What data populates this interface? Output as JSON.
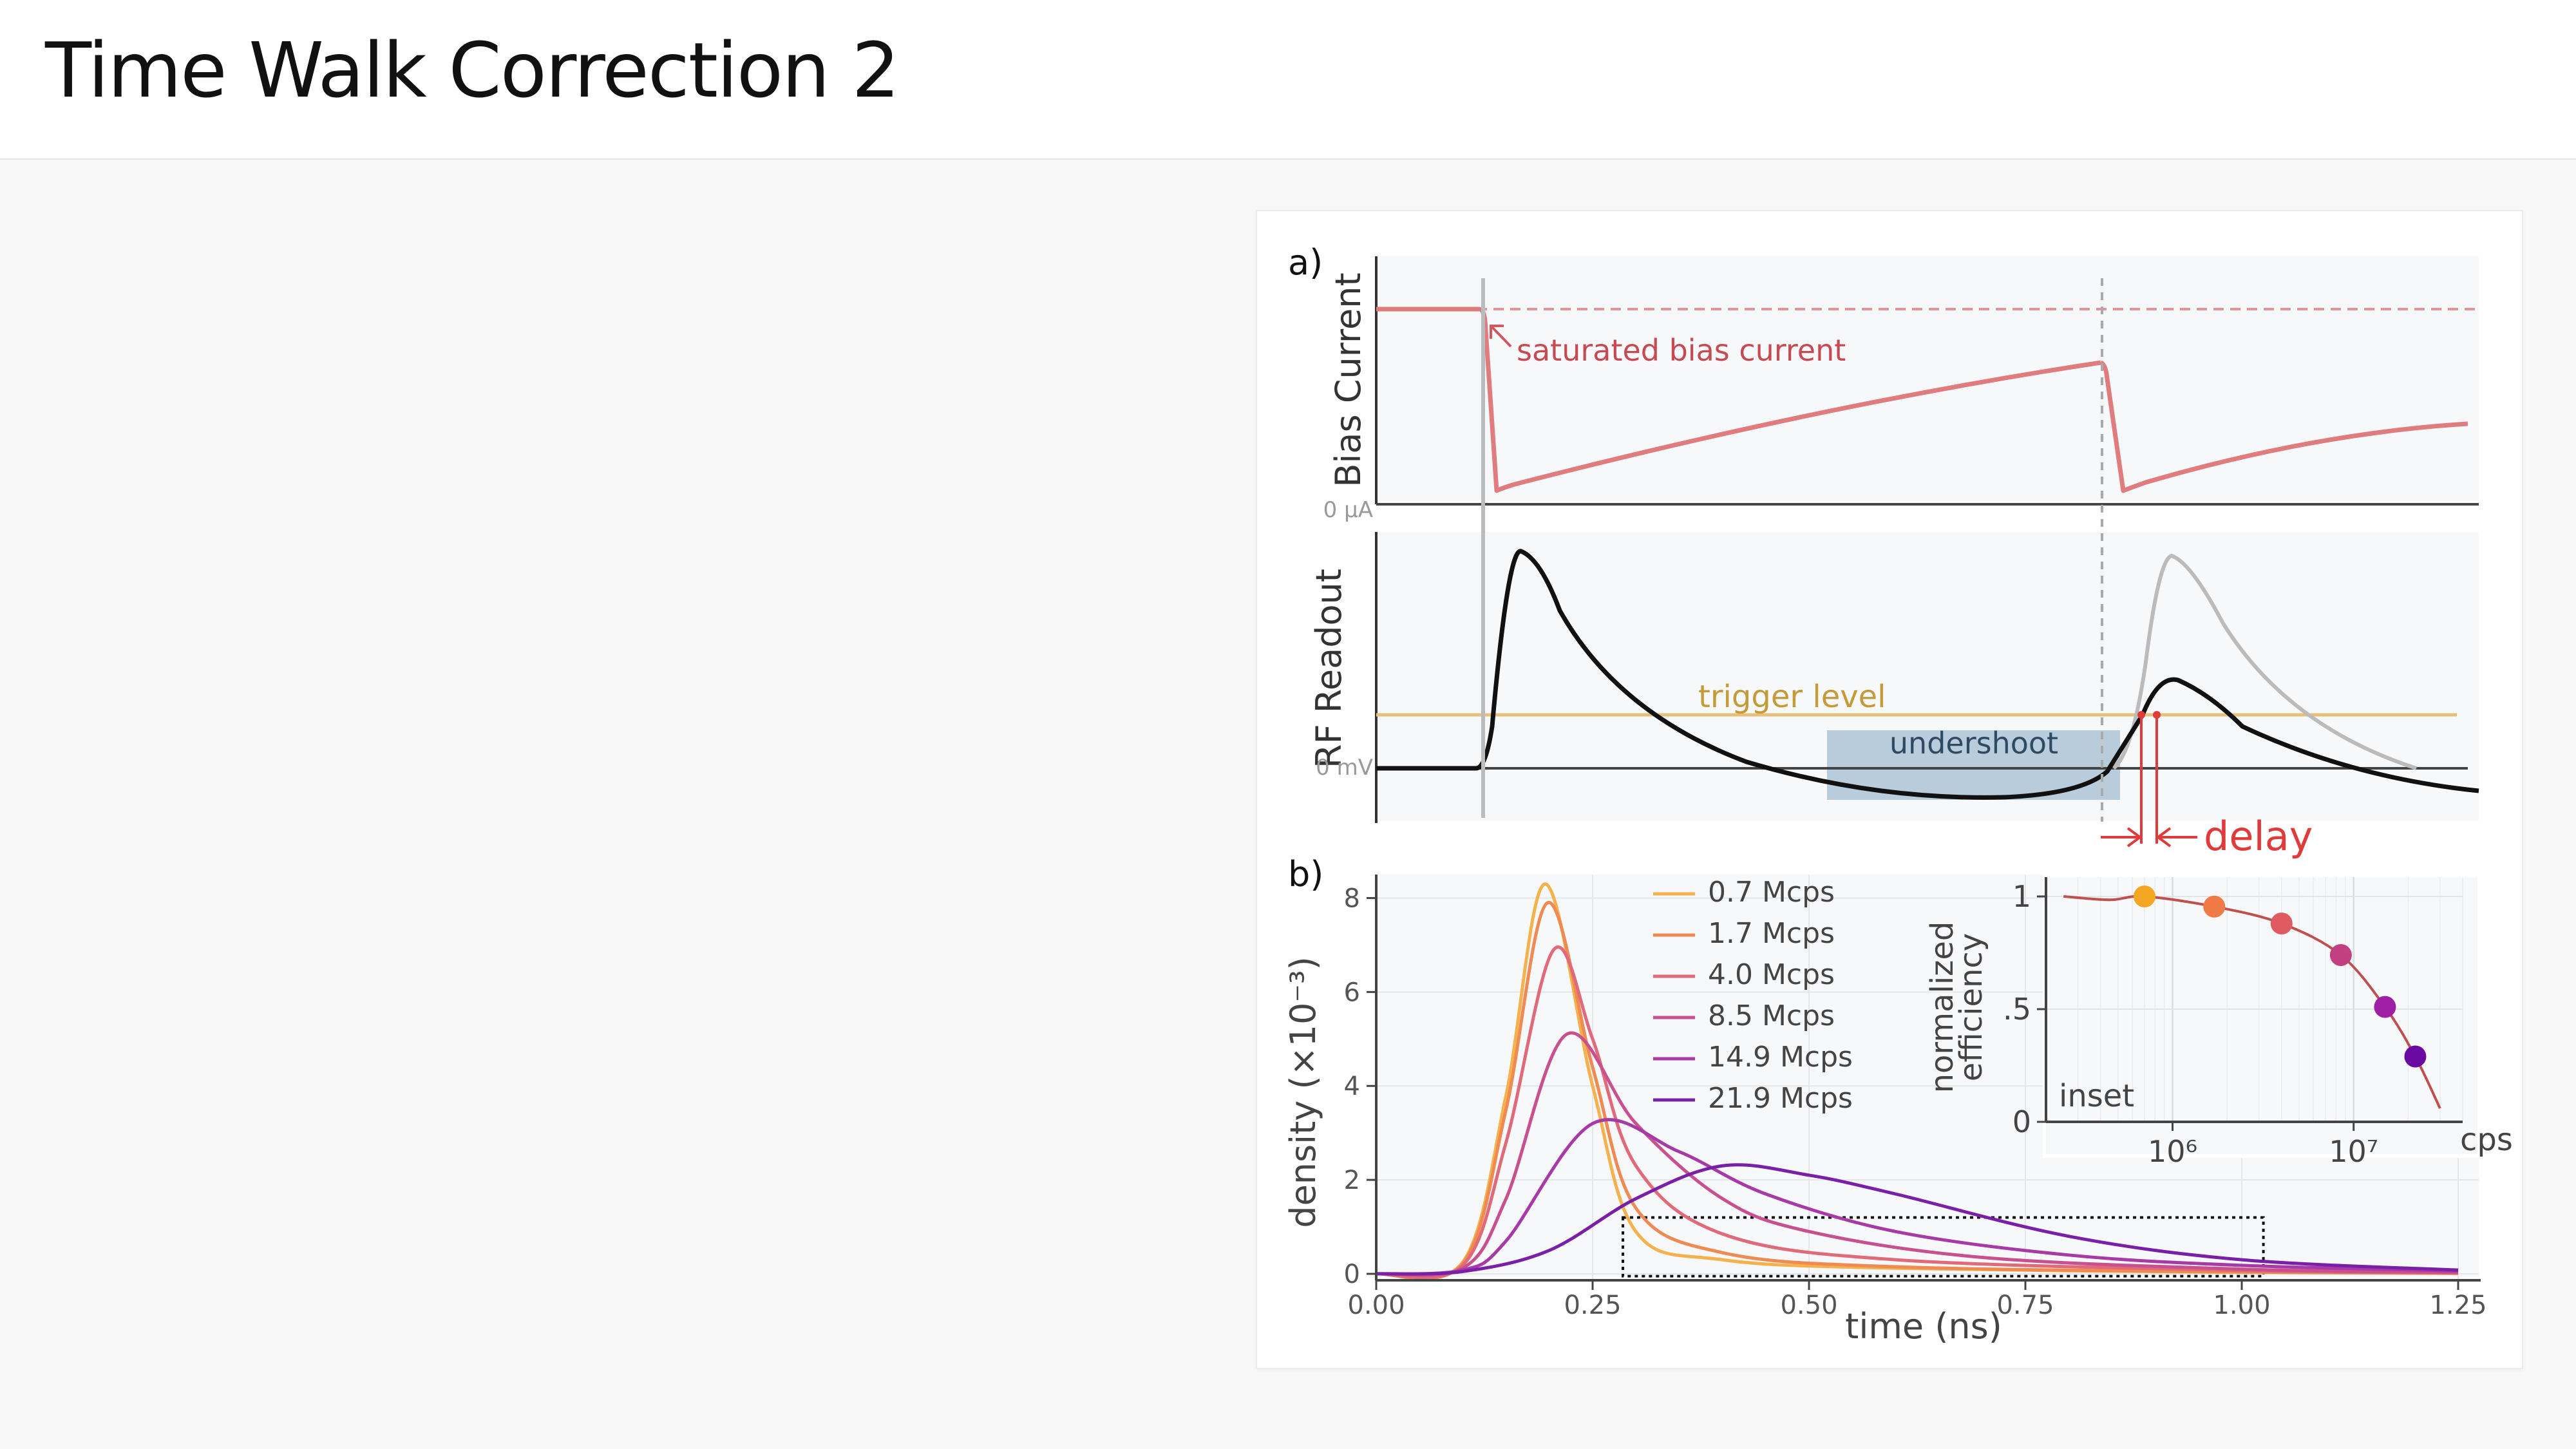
{
  "slide": {
    "title": "Time Walk Correction 2"
  },
  "figure": {
    "panel_a": {
      "label": "a)",
      "bias_ylabel": "Bias Current",
      "bias_zero": "0 μA",
      "saturated_annotation": "saturated bias current",
      "rf_ylabel": "RF  Readout",
      "rf_zero": "0 mV",
      "trigger_label": "trigger level",
      "undershoot_label": "undershoot",
      "delay_label": "delay",
      "colors": {
        "bias": "#e07b80",
        "trigger": "#e5c07b",
        "undershoot": "#a9c1d3",
        "delay": "#e03a3a"
      }
    },
    "panel_b": {
      "label": "b)",
      "ylabel": "density (×10⁻³)",
      "xlabel": "time (ns)",
      "inset_label": "inset",
      "inset_ylabel_1": "normalized",
      "inset_ylabel_2": "efficiency",
      "inset_xunit": "cps"
    }
  },
  "chart_data": [
    {
      "type": "line",
      "title": "",
      "xlabel": "time (ns)",
      "ylabel": "density (×10⁻³)",
      "xlim": [
        0,
        1.25
      ],
      "ylim": [
        0,
        8.5
      ],
      "xticks": [
        "0.00",
        "0.25",
        "0.50",
        "0.75",
        "1.00",
        "1.25"
      ],
      "yticks": [
        "0",
        "2",
        "4",
        "6",
        "8"
      ],
      "legend": "top-center",
      "grid": true,
      "series": [
        {
          "name": "0.7 Mcps",
          "color": "#f5b14c",
          "peak_x": 0.195,
          "peak_y": 8.3,
          "x": [
            0.0,
            0.1,
            0.15,
            0.195,
            0.25,
            0.3,
            0.4,
            0.6,
            1.0,
            1.25
          ],
          "y": [
            0.0,
            0.25,
            3.8,
            8.3,
            4.0,
            0.9,
            0.3,
            0.12,
            0.03,
            0.01
          ]
        },
        {
          "name": "1.7 Mcps",
          "color": "#ef8a52",
          "peak_x": 0.198,
          "peak_y": 7.9,
          "x": [
            0.0,
            0.1,
            0.15,
            0.198,
            0.25,
            0.3,
            0.4,
            0.6,
            1.0,
            1.25
          ],
          "y": [
            0.0,
            0.22,
            3.5,
            7.9,
            4.4,
            1.4,
            0.45,
            0.15,
            0.04,
            0.01
          ]
        },
        {
          "name": "4.0 Mcps",
          "color": "#e0697a",
          "peak_x": 0.205,
          "peak_y": 6.9,
          "x": [
            0.0,
            0.1,
            0.15,
            0.205,
            0.25,
            0.3,
            0.4,
            0.6,
            1.0,
            1.25
          ],
          "y": [
            0.0,
            0.18,
            2.8,
            6.9,
            5.0,
            2.3,
            0.85,
            0.3,
            0.07,
            0.02
          ]
        },
        {
          "name": "8.5 Mcps",
          "color": "#c9508e",
          "peak_x": 0.22,
          "peak_y": 5.1,
          "x": [
            0.0,
            0.1,
            0.15,
            0.22,
            0.3,
            0.4,
            0.5,
            0.7,
            1.0,
            1.25
          ],
          "y": [
            0.0,
            0.12,
            1.6,
            5.1,
            3.2,
            1.6,
            0.9,
            0.35,
            0.1,
            0.03
          ]
        },
        {
          "name": "14.9 Mcps",
          "color": "#a83aa8",
          "peak_x": 0.25,
          "peak_y": 3.2,
          "x": [
            0.0,
            0.1,
            0.15,
            0.25,
            0.35,
            0.45,
            0.6,
            0.8,
            1.0,
            1.25
          ],
          "y": [
            0.0,
            0.08,
            0.7,
            3.2,
            2.6,
            1.7,
            0.9,
            0.4,
            0.18,
            0.06
          ]
        },
        {
          "name": "21.9 Mcps",
          "color": "#7a1fa8",
          "peak_x": 0.4,
          "peak_y": 2.3,
          "x": [
            0.0,
            0.1,
            0.2,
            0.3,
            0.4,
            0.5,
            0.6,
            0.8,
            1.0,
            1.25
          ],
          "y": [
            0.0,
            0.05,
            0.5,
            1.6,
            2.3,
            2.1,
            1.7,
            0.8,
            0.3,
            0.08
          ]
        }
      ]
    },
    {
      "type": "scatter",
      "title": "",
      "xlabel": "cps",
      "ylabel": "normalized efficiency",
      "xscale": "log",
      "xlim": [
        200000,
        40000000
      ],
      "ylim": [
        0,
        1.05
      ],
      "xticks": [
        "10⁶",
        "10⁷"
      ],
      "yticks": [
        "0",
        ".5",
        "1"
      ],
      "grid": true,
      "curve_color": "#c0504d",
      "points": [
        {
          "x": 700000,
          "y": 1.0,
          "color": "#f5a623"
        },
        {
          "x": 1700000,
          "y": 0.955,
          "color": "#ef7a45"
        },
        {
          "x": 4000000,
          "y": 0.88,
          "color": "#df5b61"
        },
        {
          "x": 8500000,
          "y": 0.74,
          "color": "#c2407f"
        },
        {
          "x": 14900000,
          "y": 0.51,
          "color": "#9e1fa3"
        },
        {
          "x": 21900000,
          "y": 0.29,
          "color": "#6a0aa0"
        }
      ]
    }
  ]
}
